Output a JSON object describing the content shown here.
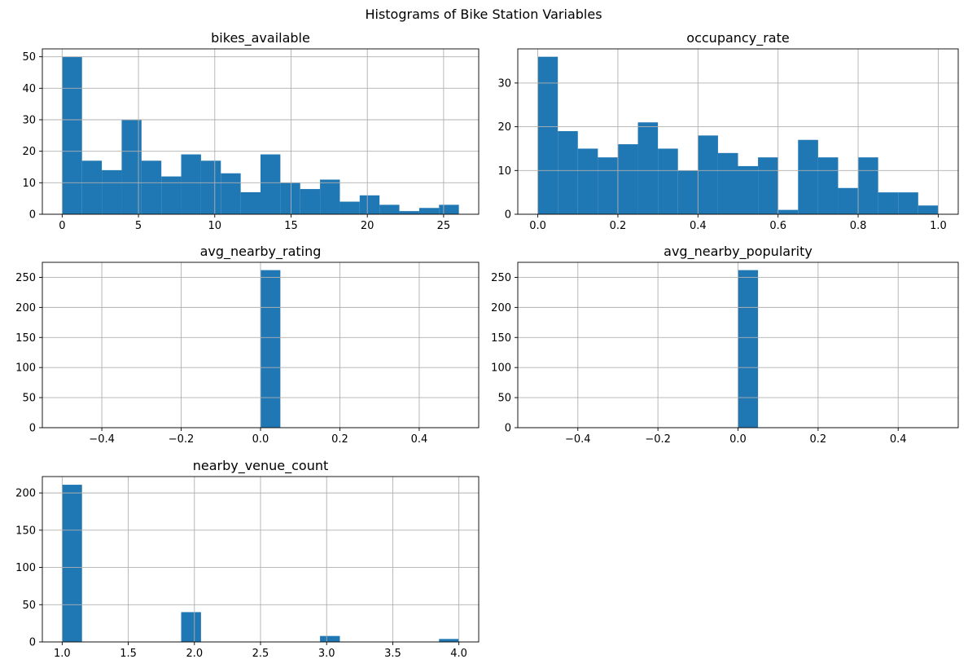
{
  "figure": {
    "title": "Histograms of Bike Station Variables"
  },
  "colors": {
    "bar": "#1f77b4",
    "grid": "#b0b0b0",
    "axis": "#000000",
    "background": "#ffffff"
  },
  "chart_data": [
    {
      "type": "bar",
      "title": "bikes_available",
      "xlabel": "",
      "ylabel": "",
      "grid": true,
      "xlim": [
        -1.3,
        27.3
      ],
      "ylim": [
        0,
        52.5
      ],
      "xticks": [
        0,
        5,
        10,
        15,
        20,
        25
      ],
      "yticks": [
        0,
        10,
        20,
        30,
        40,
        50
      ],
      "bin_edges": [
        0,
        1.3,
        2.6,
        3.9,
        5.2,
        6.5,
        7.8,
        9.1,
        10.4,
        11.7,
        13,
        14.3,
        15.6,
        16.9,
        18.2,
        19.5,
        20.8,
        22.1,
        23.4,
        24.7,
        26
      ],
      "counts": [
        50,
        17,
        14,
        30,
        17,
        12,
        19,
        17,
        13,
        7,
        19,
        10,
        8,
        11,
        4,
        6,
        3,
        1,
        2,
        3
      ]
    },
    {
      "type": "bar",
      "title": "occupancy_rate",
      "xlabel": "",
      "ylabel": "",
      "grid": true,
      "xlim": [
        -0.05,
        1.05
      ],
      "ylim": [
        0,
        37.8
      ],
      "xticks": [
        0,
        0.2,
        0.4,
        0.6,
        0.8,
        1
      ],
      "xtick_labels": [
        "0.0",
        "0.2",
        "0.4",
        "0.6",
        "0.8",
        "1.0"
      ],
      "yticks": [
        0,
        10,
        20,
        30
      ],
      "bin_edges": [
        0,
        0.05,
        0.1,
        0.15,
        0.2,
        0.25,
        0.3,
        0.35,
        0.4,
        0.45,
        0.5,
        0.55,
        0.6,
        0.65,
        0.7,
        0.75,
        0.8,
        0.85,
        0.9,
        0.95,
        1
      ],
      "counts": [
        36,
        19,
        15,
        13,
        16,
        21,
        15,
        10,
        18,
        14,
        11,
        13,
        1,
        17,
        13,
        6,
        13,
        5,
        5,
        2
      ]
    },
    {
      "type": "bar",
      "title": "avg_nearby_rating",
      "xlabel": "",
      "ylabel": "",
      "grid": true,
      "xlim": [
        -0.55,
        0.55
      ],
      "ylim": [
        0,
        275
      ],
      "xticks": [
        -0.4,
        -0.2,
        0,
        0.2,
        0.4
      ],
      "xtick_labels": [
        "−0.4",
        "−0.2",
        "0.0",
        "0.2",
        "0.4"
      ],
      "yticks": [
        0,
        50,
        100,
        150,
        200,
        250
      ],
      "bin_edges": [
        -0.5,
        -0.45,
        -0.4,
        -0.35,
        -0.3,
        -0.25,
        -0.2,
        -0.15,
        -0.1,
        -0.05,
        0,
        0.05,
        0.1,
        0.15,
        0.2,
        0.25,
        0.3,
        0.35,
        0.4,
        0.45,
        0.5
      ],
      "counts": [
        0,
        0,
        0,
        0,
        0,
        0,
        0,
        0,
        0,
        0,
        262,
        0,
        0,
        0,
        0,
        0,
        0,
        0,
        0,
        0
      ]
    },
    {
      "type": "bar",
      "title": "avg_nearby_popularity",
      "xlabel": "",
      "ylabel": "",
      "grid": true,
      "xlim": [
        -0.55,
        0.55
      ],
      "ylim": [
        0,
        275
      ],
      "xticks": [
        -0.4,
        -0.2,
        0,
        0.2,
        0.4
      ],
      "xtick_labels": [
        "−0.4",
        "−0.2",
        "0.0",
        "0.2",
        "0.4"
      ],
      "yticks": [
        0,
        50,
        100,
        150,
        200,
        250
      ],
      "bin_edges": [
        -0.5,
        -0.45,
        -0.4,
        -0.35,
        -0.3,
        -0.25,
        -0.2,
        -0.15,
        -0.1,
        -0.05,
        0,
        0.05,
        0.1,
        0.15,
        0.2,
        0.25,
        0.3,
        0.35,
        0.4,
        0.45,
        0.5
      ],
      "counts": [
        0,
        0,
        0,
        0,
        0,
        0,
        0,
        0,
        0,
        0,
        262,
        0,
        0,
        0,
        0,
        0,
        0,
        0,
        0,
        0
      ]
    },
    {
      "type": "bar",
      "title": "nearby_venue_count",
      "xlabel": "",
      "ylabel": "",
      "grid": true,
      "xlim": [
        0.85,
        4.15
      ],
      "ylim": [
        0,
        222
      ],
      "xticks": [
        1,
        1.5,
        2,
        2.5,
        3,
        3.5,
        4
      ],
      "xtick_labels": [
        "1.0",
        "1.5",
        "2.0",
        "2.5",
        "3.0",
        "3.5",
        "4.0"
      ],
      "yticks": [
        0,
        50,
        100,
        150,
        200
      ],
      "bin_edges": [
        1,
        1.15,
        1.3,
        1.45,
        1.6,
        1.75,
        1.9,
        2.05,
        2.2,
        2.35,
        2.5,
        2.65,
        2.8,
        2.95,
        3.1,
        3.25,
        3.4,
        3.55,
        3.7,
        3.85,
        4
      ],
      "counts": [
        211,
        0,
        0,
        0,
        0,
        0,
        40,
        0,
        0,
        0,
        0,
        0,
        0,
        8,
        0,
        0,
        0,
        0,
        0,
        4
      ]
    }
  ]
}
